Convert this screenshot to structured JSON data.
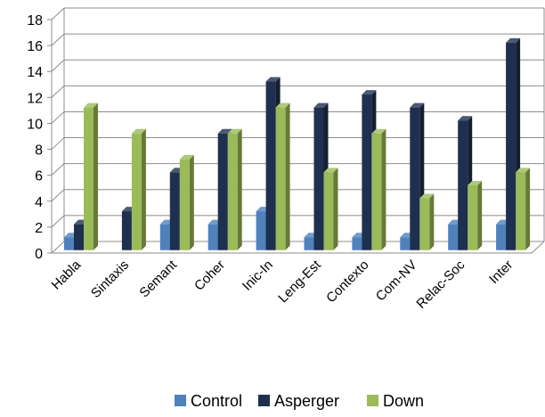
{
  "chart_data": {
    "type": "bar",
    "categories": [
      "Habla",
      "Sintaxis",
      "Semant",
      "Coher",
      "Inic-In",
      "Leng-Est",
      "Contexto",
      "Com-NV",
      "Relac-Soc",
      "Inter"
    ],
    "series": [
      {
        "name": "Control",
        "color": "#4f81bd",
        "values": [
          1,
          0,
          2,
          2,
          3,
          1,
          1,
          1,
          2,
          2
        ]
      },
      {
        "name": "Asperger",
        "color": "#1f2f4f",
        "values": [
          2,
          3,
          6,
          9,
          13,
          11,
          12,
          11,
          10,
          16
        ]
      },
      {
        "name": "Down",
        "color": "#9bbb59",
        "values": [
          11,
          9,
          7,
          9,
          11,
          6,
          9,
          4,
          5,
          6
        ]
      }
    ],
    "ylim": [
      0,
      18
    ],
    "yticks": [
      0,
      2,
      4,
      6,
      8,
      10,
      12,
      14,
      16,
      18
    ],
    "grid": true,
    "legend": "bottom",
    "title": "",
    "xlabel": "",
    "ylabel": ""
  }
}
